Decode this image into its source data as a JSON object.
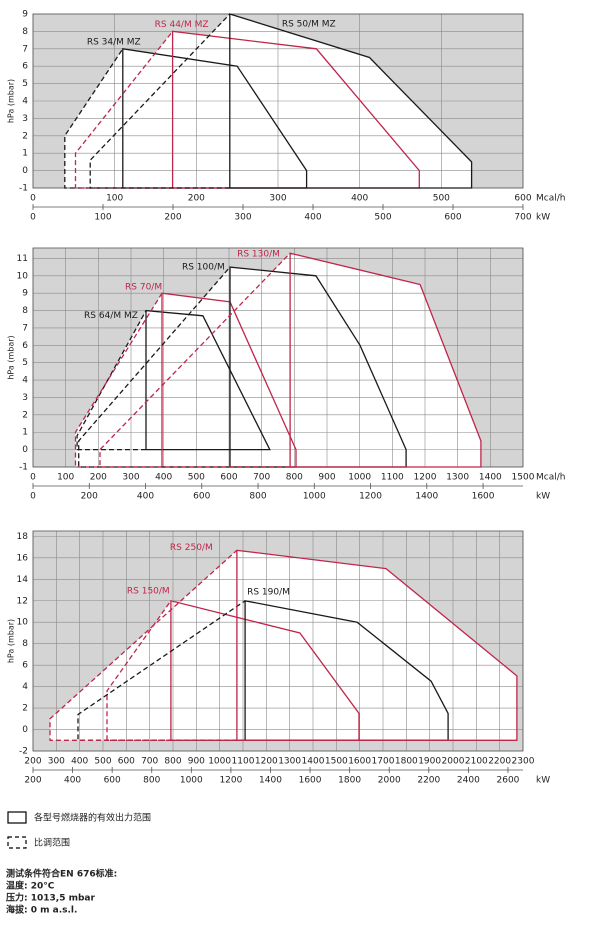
{
  "chart_data": [
    {
      "type": "line",
      "y_label": "hPa (mbar)",
      "x_unit": "Mcal/h",
      "x2_unit": "kW",
      "grid": true,
      "xlim": [
        0,
        600
      ],
      "xticks": [
        0,
        100,
        200,
        300,
        400,
        500,
        600
      ],
      "x2lim": [
        0,
        700
      ],
      "x2ticks": [
        0,
        100,
        200,
        300,
        400,
        500,
        600,
        700
      ],
      "ylim": [
        -1,
        9
      ],
      "yticks": [
        -1,
        0,
        1,
        2,
        3,
        4,
        5,
        6,
        7,
        8,
        9
      ],
      "series": [
        {
          "name": "RS 34/M MZ",
          "color": "#1a1a1a",
          "x": [
            110,
            110,
            250,
            335,
            335,
            110
          ],
          "values": [
            -1,
            7,
            6,
            0,
            -1,
            -1
          ],
          "dashed_x": [
            110,
            39,
            39,
            110
          ],
          "dashed_values": [
            -1,
            -1,
            2,
            7
          ]
        },
        {
          "name": "RS 44/M MZ",
          "color": "#c0254a",
          "x": [
            171,
            171,
            347,
            473,
            473,
            171
          ],
          "values": [
            -1,
            8,
            7,
            0,
            -1,
            -1
          ],
          "dashed_x": [
            171,
            52,
            52,
            171
          ],
          "dashed_values": [
            -1,
            -1,
            1,
            8
          ]
        },
        {
          "name": "RS 50/M MZ",
          "color": "#1a1a1a",
          "x": [
            241,
            241,
            412,
            537,
            537,
            241
          ],
          "values": [
            -1,
            9,
            6.5,
            0.5,
            -1,
            -1
          ],
          "dashed_x": [
            241,
            70,
            70,
            241
          ],
          "dashed_values": [
            -1,
            -1,
            0.6,
            9
          ]
        }
      ]
    },
    {
      "type": "line",
      "y_label": "hPa (mbar)",
      "x_unit": "Mcal/h",
      "x2_unit": "kW",
      "grid": true,
      "xlim": [
        0,
        1500
      ],
      "xticks": [
        0,
        100,
        200,
        300,
        400,
        500,
        600,
        700,
        800,
        900,
        1000,
        1100,
        1200,
        1300,
        1400,
        1500
      ],
      "x2lim": [
        0,
        1742
      ],
      "x2ticks": [
        0,
        200,
        400,
        600,
        800,
        1000,
        1200,
        1400,
        1600
      ],
      "ylim": [
        -1,
        11.6
      ],
      "yticks": [
        -1,
        0,
        1,
        2,
        3,
        4,
        5,
        6,
        7,
        8,
        9,
        10,
        11
      ],
      "series": [
        {
          "name": "RS 64/M MZ",
          "color": "#1a1a1a",
          "x": [
            346,
            346,
            520,
            725,
            346
          ],
          "values": [
            0,
            8,
            7.7,
            0,
            0
          ],
          "dashed_x": [
            346,
            135,
            135,
            346
          ],
          "dashed_values": [
            0,
            0,
            0.8,
            8
          ]
        },
        {
          "name": "RS 70/M",
          "color": "#c0254a",
          "x": [
            395,
            395,
            603,
            805,
            805,
            395
          ],
          "values": [
            -1,
            9,
            8.5,
            0,
            -1,
            -1
          ],
          "dashed_x": [
            395,
            130,
            130,
            395
          ],
          "dashed_values": [
            -1,
            -1,
            1,
            9
          ]
        },
        {
          "name": "RS 100/M",
          "color": "#1a1a1a",
          "x": [
            603,
            603,
            866,
            1001,
            1142,
            1142,
            603
          ],
          "values": [
            -1,
            10.5,
            10,
            6,
            0,
            -1,
            -1
          ],
          "dashed_x": [
            603,
            140,
            140,
            603
          ],
          "dashed_values": [
            -1,
            -1,
            0.5,
            10.5
          ]
        },
        {
          "name": "RS 130/M",
          "color": "#c0254a",
          "x": [
            787,
            787,
            1185,
            1371,
            1371,
            787
          ],
          "values": [
            -1,
            11.3,
            9.5,
            0.5,
            -1,
            -1
          ],
          "dashed_x": [
            787,
            205,
            205,
            787
          ],
          "dashed_values": [
            -1,
            -1,
            0,
            11.3
          ]
        }
      ]
    },
    {
      "type": "line",
      "y_label": "hPa (mbar)",
      "x2_unit": "kW",
      "grid": true,
      "xlim": [
        200,
        2300
      ],
      "xticks": [
        200,
        300,
        400,
        500,
        600,
        700,
        800,
        900,
        1000,
        1100,
        1200,
        1300,
        1400,
        1500,
        1600,
        1700,
        1800,
        1900,
        2000,
        2100,
        2200,
        2300
      ],
      "x2lim": [
        200,
        2676
      ],
      "x2ticks": [
        200,
        400,
        600,
        800,
        1000,
        1200,
        1400,
        1600,
        1800,
        2000,
        2200,
        2400,
        2600
      ],
      "ylim": [
        -2,
        18.5
      ],
      "yticks": [
        -2,
        0,
        2,
        4,
        6,
        8,
        10,
        12,
        14,
        16,
        18
      ],
      "series": [
        {
          "name": "RS 150/M",
          "color": "#c0254a",
          "x": [
            791,
            791,
            1344,
            1597,
            1597,
            791
          ],
          "values": [
            -1,
            12,
            9,
            1.5,
            -1,
            -1
          ],
          "dashed_x": [
            791,
            517,
            517,
            791
          ],
          "dashed_values": [
            -1,
            -1,
            3.6,
            12
          ]
        },
        {
          "name": "RS 190/M",
          "color": "#1a1a1a",
          "x": [
            1109,
            1109,
            1589,
            1906,
            1979,
            1979,
            1109
          ],
          "values": [
            -1,
            12,
            10,
            4.5,
            1.5,
            -1,
            -1
          ],
          "dashed_x": [
            1109,
            393,
            393,
            1109
          ],
          "dashed_values": [
            -1,
            -1,
            1.4,
            12
          ]
        },
        {
          "name": "RS 250/M",
          "color": "#c0254a",
          "x": [
            1074,
            1074,
            1713,
            2274,
            2274,
            1074
          ],
          "values": [
            -1,
            16.7,
            15,
            5,
            -1,
            -1
          ],
          "dashed_x": [
            1074,
            273,
            273,
            1074
          ],
          "dashed_values": [
            -1,
            -1,
            1,
            16.7
          ]
        }
      ]
    }
  ],
  "legend": {
    "solid": "各型号燃烧器的有效出力范围",
    "dashed": "比调范围"
  },
  "notes": {
    "title": "测试条件符合EN 676标准:",
    "temperature": "温度: 20°C",
    "pressure": "压力: 1013,5 mbar",
    "altitude": "海拔: 0 m a.s.l."
  }
}
